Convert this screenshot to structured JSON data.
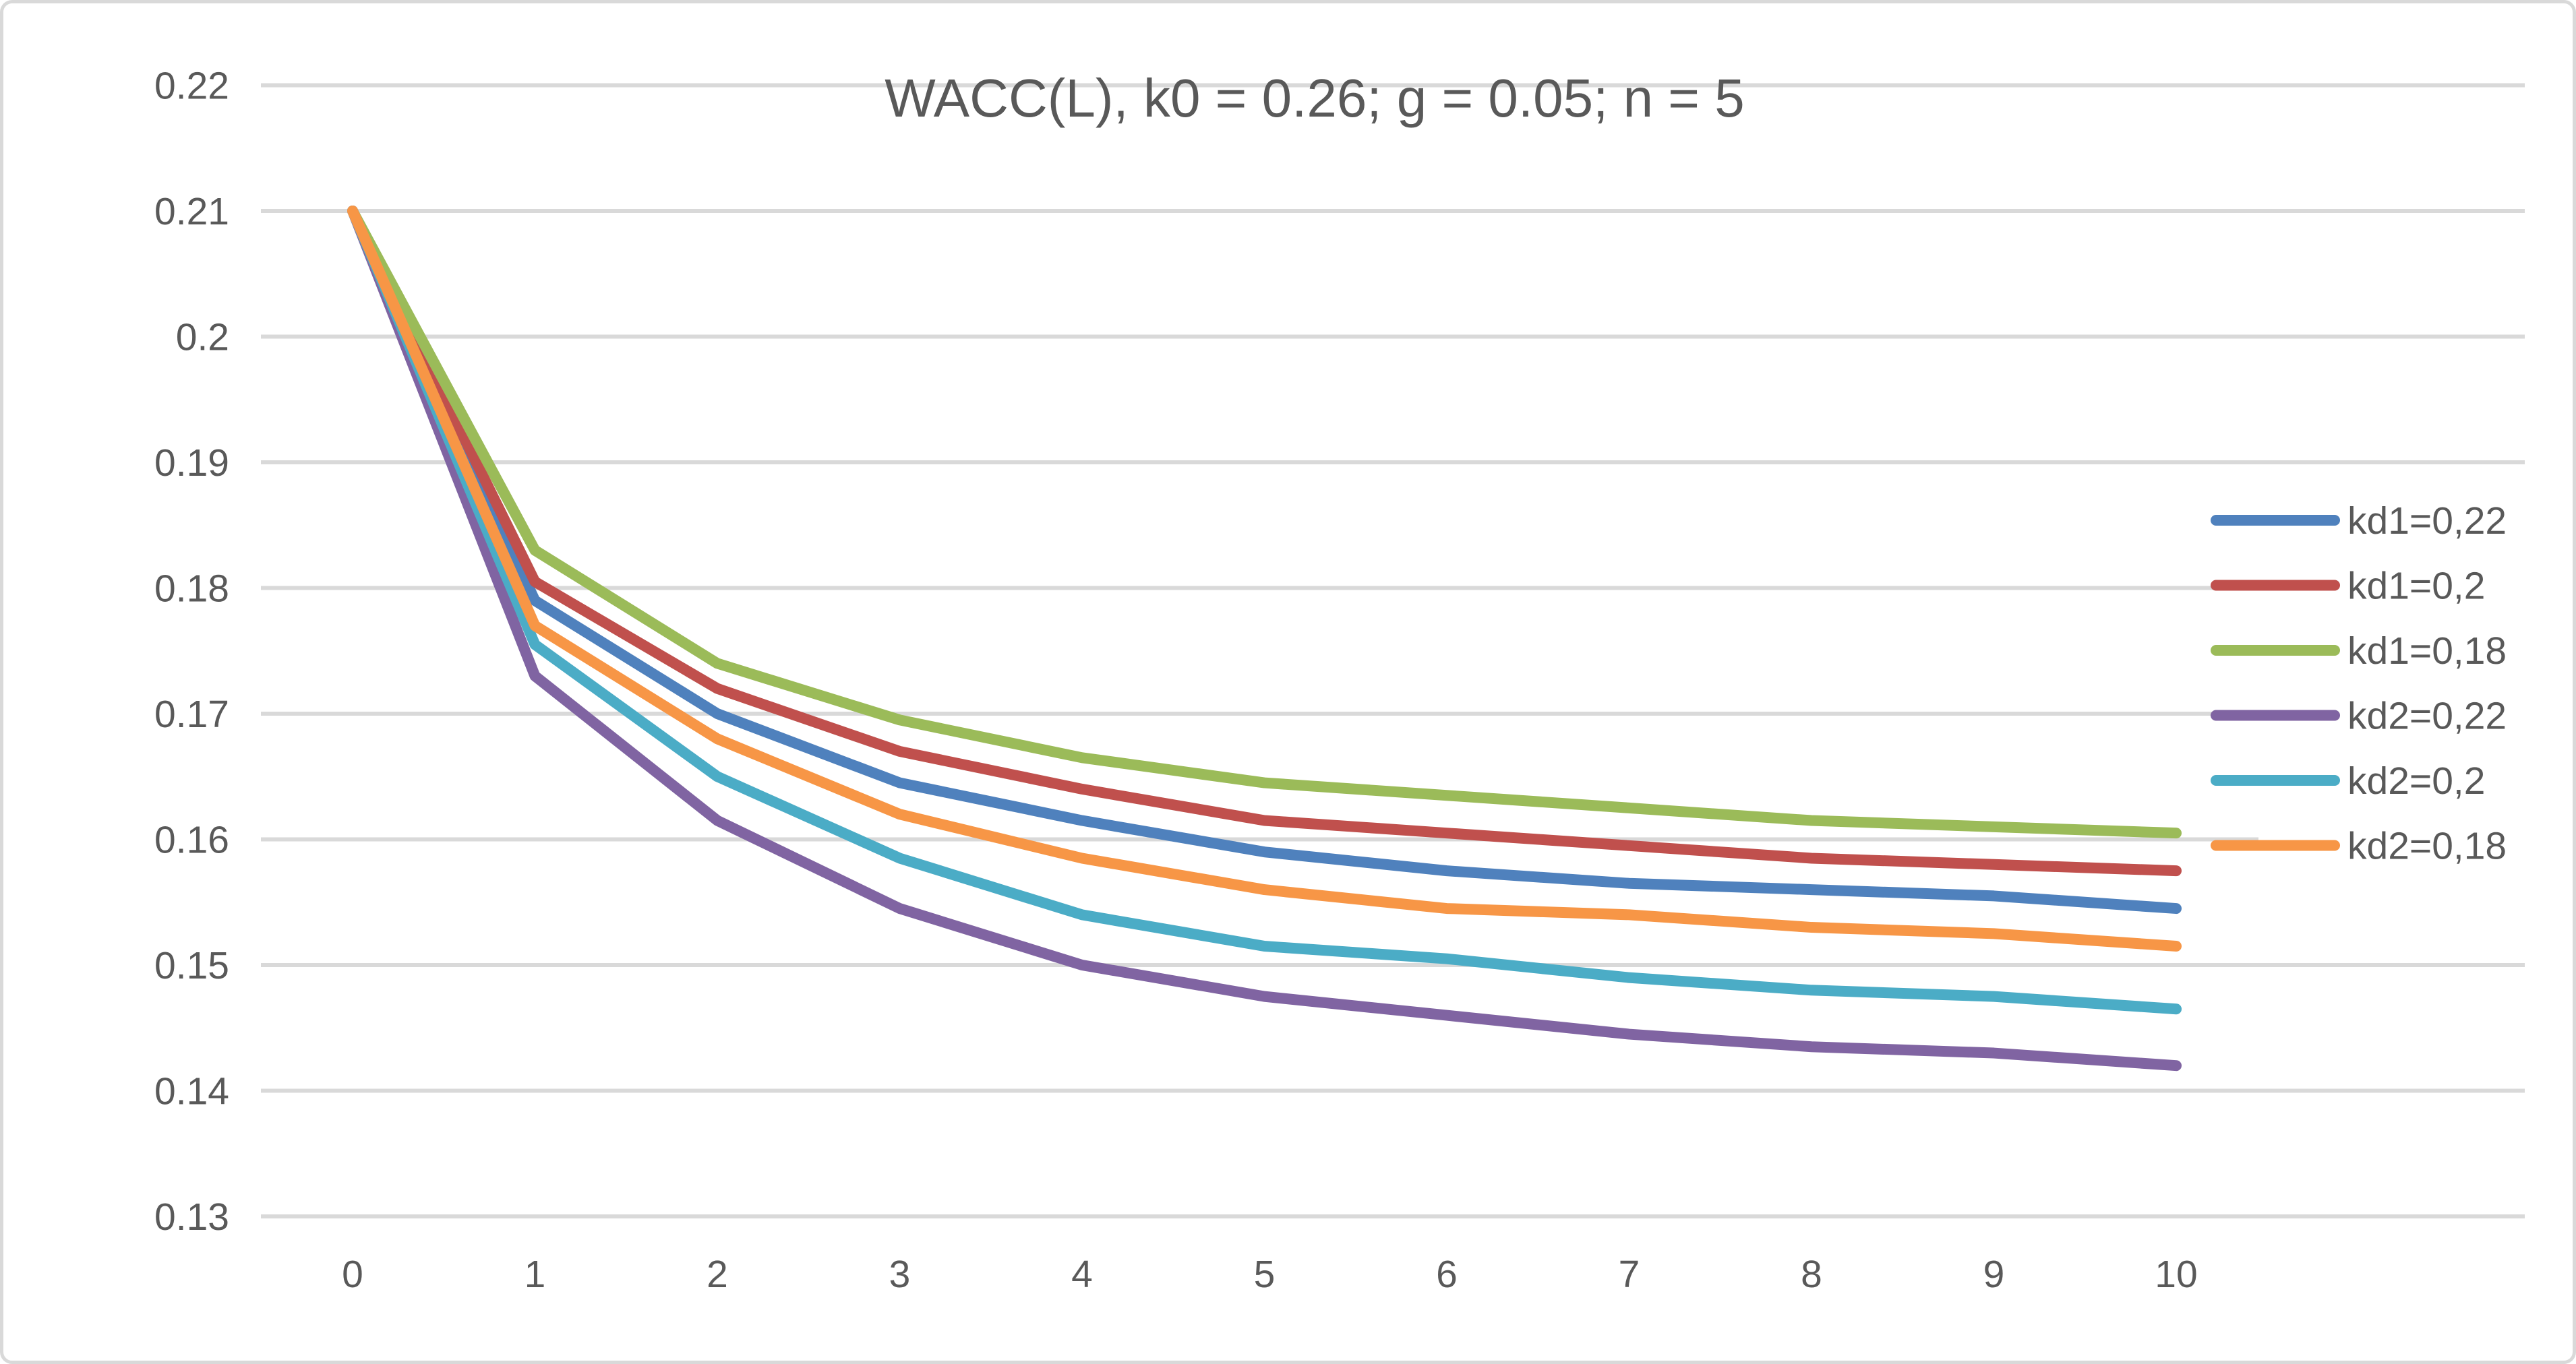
{
  "chart_data": {
    "type": "line",
    "title": "WACC(L), k0 = 0.26; g = 0.05; n = 5",
    "x": [
      0,
      1,
      2,
      3,
      4,
      5,
      6,
      7,
      8,
      9,
      10
    ],
    "x_tick_labels": [
      "0",
      "1",
      "2",
      "3",
      "4",
      "5",
      "6",
      "7",
      "8",
      "9",
      "10"
    ],
    "y_tick_labels": [
      "0.22",
      "0.21",
      "0.2",
      "0.19",
      "0.18",
      "0.17",
      "0.16",
      "0.15",
      "0.14",
      "0.13"
    ],
    "ylim": [
      0.13,
      0.22
    ],
    "xlim": [
      0,
      10
    ],
    "xlabel": "",
    "ylabel": "",
    "grid": "horizontal",
    "legend_position": "right-overlay",
    "series": [
      {
        "name": "kd1=0,22",
        "color": "#4F81BD",
        "values": [
          0.21,
          0.179,
          0.17,
          0.1645,
          0.1615,
          0.159,
          0.1575,
          0.1565,
          0.156,
          0.1555,
          0.1545
        ]
      },
      {
        "name": "kd1=0,2",
        "color": "#C0504D",
        "values": [
          0.21,
          0.1805,
          0.172,
          0.167,
          0.164,
          0.1615,
          0.1605,
          0.1595,
          0.1585,
          0.158,
          0.1575
        ]
      },
      {
        "name": "kd1=0,18",
        "color": "#9BBB59",
        "values": [
          0.21,
          0.183,
          0.174,
          0.1695,
          0.1665,
          0.1645,
          0.1635,
          0.1625,
          0.1615,
          0.161,
          0.1605
        ]
      },
      {
        "name": "kd2=0,22",
        "color": "#8064A2",
        "values": [
          0.21,
          0.173,
          0.1615,
          0.1545,
          0.15,
          0.1475,
          0.146,
          0.1445,
          0.1435,
          0.143,
          0.142
        ]
      },
      {
        "name": "kd2=0,2",
        "color": "#4BACC6",
        "values": [
          0.21,
          0.1755,
          0.165,
          0.1585,
          0.154,
          0.1515,
          0.1505,
          0.149,
          0.148,
          0.1475,
          0.1465
        ]
      },
      {
        "name": "kd2=0,18",
        "color": "#F79646",
        "values": [
          0.21,
          0.177,
          0.168,
          0.162,
          0.1585,
          0.156,
          0.1545,
          0.154,
          0.153,
          0.1525,
          0.1515
        ]
      }
    ],
    "colors": {
      "text": "#595959",
      "gridline": "#D9D9D9",
      "frame": "#D9D9D9",
      "background": "#FFFFFF"
    }
  }
}
